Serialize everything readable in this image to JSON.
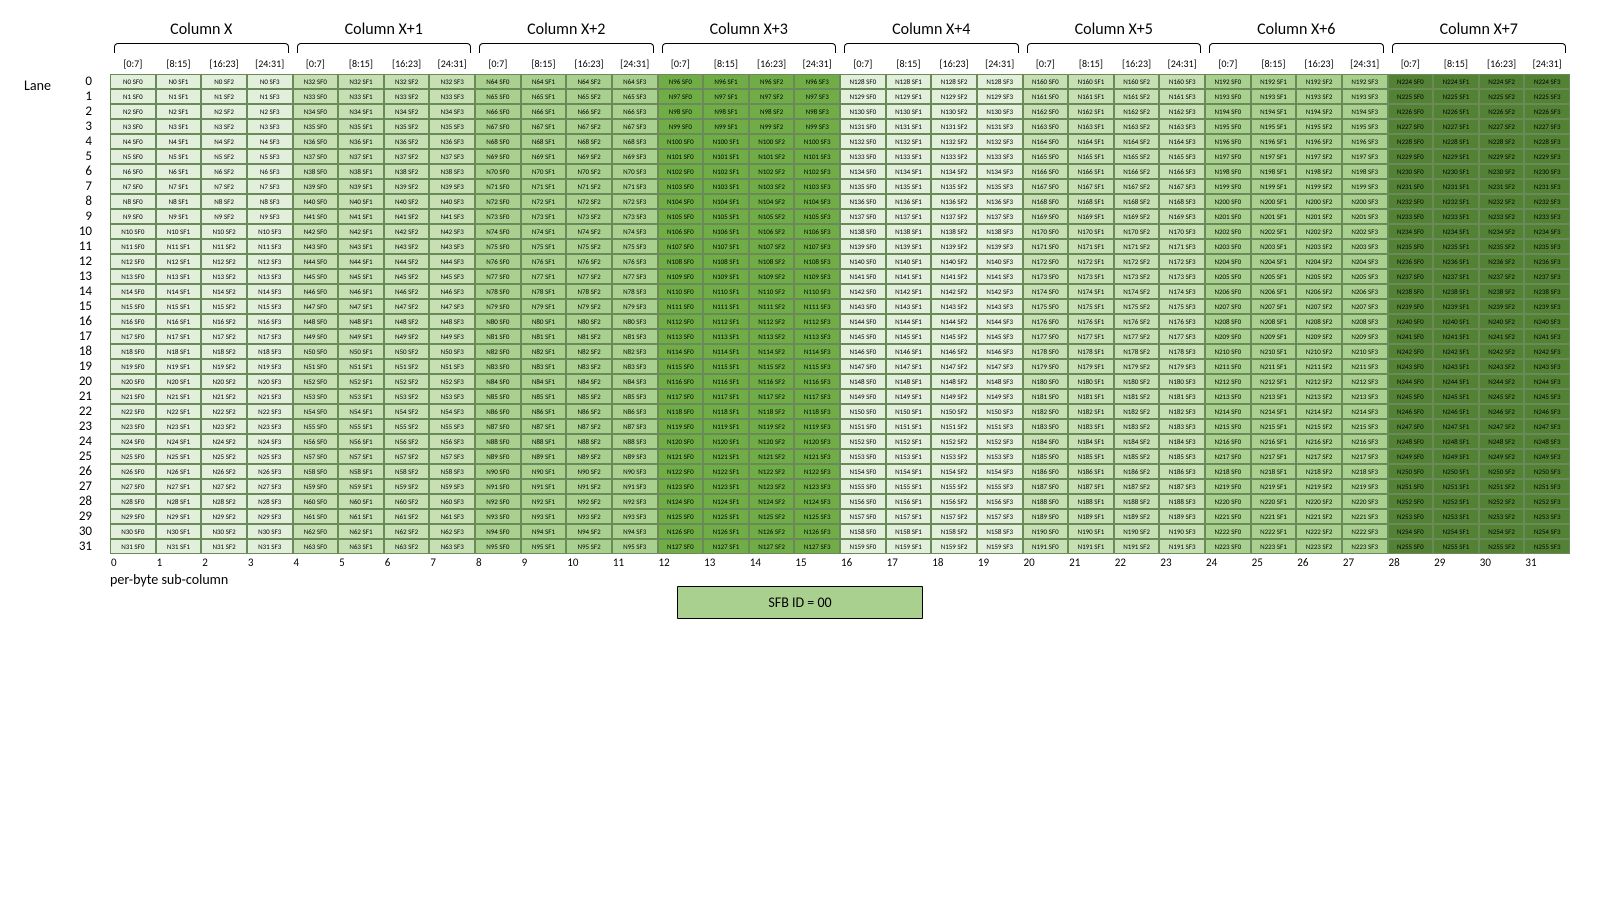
{
  "layout": {
    "num_cols": 8,
    "num_lanes": 32,
    "subfields_per_col": 4,
    "lane_word": "Lane",
    "sub_label": "per-byte sub-column",
    "badge_text": "SFB ID = 00",
    "badge_bg": "#a9d08e"
  },
  "colors": {
    "shades": [
      "#e2efda",
      "#c6e0b4",
      "#a9d08e",
      "#70ad47",
      "#e2efda",
      "#c6e0b4",
      "#a9d08e",
      "#548235"
    ],
    "text": [
      "#000000",
      "#000000",
      "#000000",
      "#000000",
      "#000000",
      "#000000",
      "#000000",
      "#000000"
    ],
    "border": "#6a8a5a",
    "background": "#ffffff"
  },
  "col_header_prefix": "Column X",
  "col_offsets": [
    "",
    "+1",
    "+2",
    "+3",
    "+4",
    "+5",
    "+6",
    "+7"
  ],
  "byte_ranges": [
    "[0:7]",
    "[8:15]",
    "[16:23]",
    "[24:31]"
  ],
  "cell_pattern": {
    "n_prefix": "N",
    "sf_prefix": "SF",
    "n_value_formula": "col*32 + lane",
    "sf_value_formula": "subfield_index"
  },
  "typography": {
    "header_fontsize": 16,
    "byte_fontsize": 10,
    "lane_fontsize": 13,
    "cell_fontsize": 7,
    "subnum_fontsize": 11,
    "sublabel_fontsize": 14,
    "badge_fontsize": 14
  }
}
